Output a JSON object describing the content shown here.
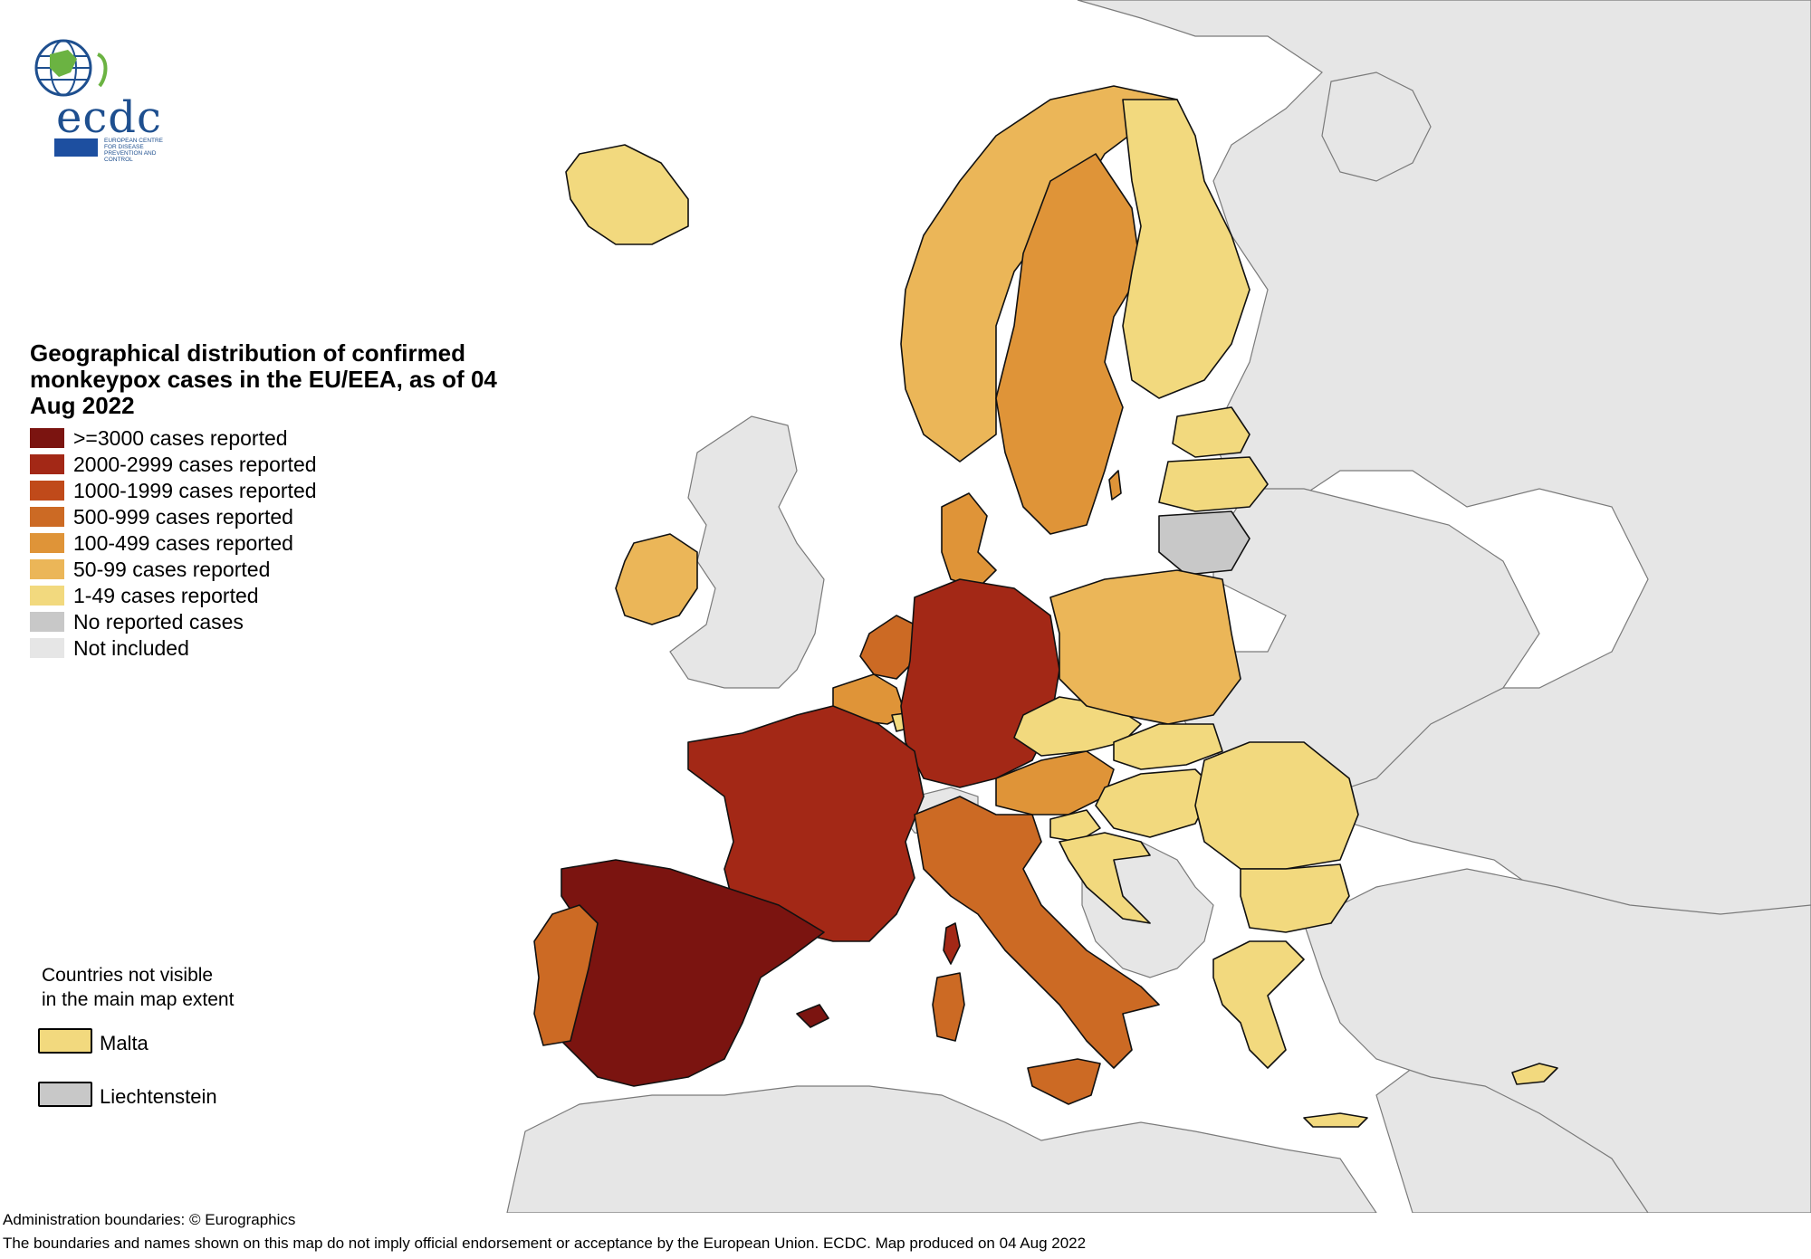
{
  "logo": {
    "wordmark": "ecdc",
    "subtitle": "EUROPEAN CENTRE FOR DISEASE PREVENTION AND CONTROL"
  },
  "title": "Geographical distribution of confirmed monkeypox cases in the EU/EEA, as of 04 Aug 2022",
  "legend": {
    "items": [
      {
        "label": ">=3000 cases reported",
        "color": "#7b1410"
      },
      {
        "label": "2000-2999 cases reported",
        "color": "#a32816"
      },
      {
        "label": "1000-1999 cases reported",
        "color": "#c04a1a"
      },
      {
        "label": "500-999 cases reported",
        "color": "#cc6a24"
      },
      {
        "label": "100-499 cases reported",
        "color": "#df9438"
      },
      {
        "label": "50-99 cases reported",
        "color": "#ebb658"
      },
      {
        "label": "1-49 cases reported",
        "color": "#f2d97e"
      },
      {
        "label": "No reported cases",
        "color": "#c8c8c8"
      },
      {
        "label": "Not included",
        "color": "#e6e6e6"
      }
    ]
  },
  "inset": {
    "title_line1": "Countries not visible",
    "title_line2": "in the main map extent",
    "malta": {
      "label": "Malta",
      "color": "#f2d97e"
    },
    "liechtenstein": {
      "label": "Liechtenstein",
      "color": "#c8c8c8"
    }
  },
  "footer": {
    "line1": "Administration boundaries: © Eurographics",
    "line2": "The boundaries and names shown on this map do not imply official endorsement or acceptance by the European Union. ECDC. Map produced on 04 Aug 2022"
  },
  "countries": [
    {
      "name": "Spain",
      "category": ">=3000 cases reported"
    },
    {
      "name": "Germany",
      "category": "2000-2999 cases reported"
    },
    {
      "name": "France",
      "category": "2000-2999 cases reported"
    },
    {
      "name": "Italy",
      "category": "500-999 cases reported"
    },
    {
      "name": "Portugal",
      "category": "500-999 cases reported"
    },
    {
      "name": "Netherlands",
      "category": "500-999 cases reported"
    },
    {
      "name": "Belgium",
      "category": "100-499 cases reported"
    },
    {
      "name": "Austria",
      "category": "100-499 cases reported"
    },
    {
      "name": "Sweden",
      "category": "100-499 cases reported"
    },
    {
      "name": "Denmark",
      "category": "100-499 cases reported"
    },
    {
      "name": "Norway",
      "category": "50-99 cases reported"
    },
    {
      "name": "Poland",
      "category": "50-99 cases reported"
    },
    {
      "name": "Ireland",
      "category": "50-99 cases reported"
    },
    {
      "name": "Finland",
      "category": "1-49 cases reported"
    },
    {
      "name": "Iceland",
      "category": "1-49 cases reported"
    },
    {
      "name": "Estonia",
      "category": "1-49 cases reported"
    },
    {
      "name": "Latvia",
      "category": "1-49 cases reported"
    },
    {
      "name": "Czechia",
      "category": "1-49 cases reported"
    },
    {
      "name": "Slovakia",
      "category": "1-49 cases reported"
    },
    {
      "name": "Hungary",
      "category": "1-49 cases reported"
    },
    {
      "name": "Slovenia",
      "category": "1-49 cases reported"
    },
    {
      "name": "Croatia",
      "category": "1-49 cases reported"
    },
    {
      "name": "Romania",
      "category": "1-49 cases reported"
    },
    {
      "name": "Bulgaria",
      "category": "1-49 cases reported"
    },
    {
      "name": "Greece",
      "category": "1-49 cases reported"
    },
    {
      "name": "Cyprus",
      "category": "1-49 cases reported"
    },
    {
      "name": "Luxembourg",
      "category": "1-49 cases reported"
    },
    {
      "name": "Lithuania",
      "category": "No reported cases"
    },
    {
      "name": "Malta",
      "category": "1-49 cases reported"
    },
    {
      "name": "Liechtenstein",
      "category": "No reported cases"
    }
  ]
}
